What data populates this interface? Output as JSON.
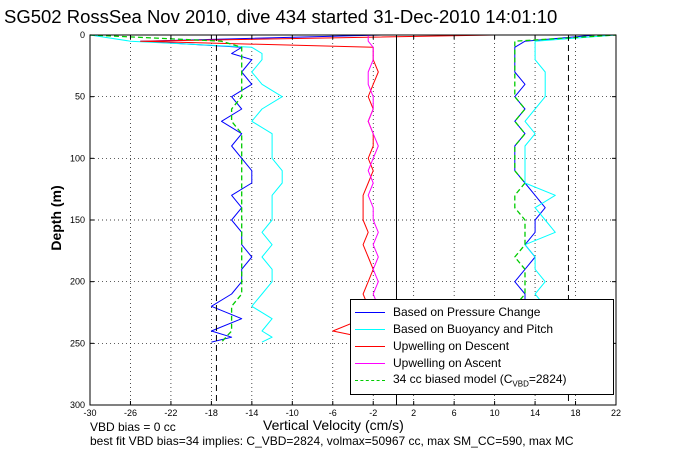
{
  "figure": {
    "title": "SG502 RossSea Nov 2010, dive 434 started 31-Dec-2010 14:01:10",
    "note_line1": "VBD bias = 0 cc",
    "note_line2": "best fit VBD bias=34 implies: C_VBD=2824, volmax=50967 cc, max SM_CC=590, max MC"
  },
  "chart_data": {
    "type": "line",
    "title": "SG502 RossSea Nov 2010, dive 434 started 31-Dec-2010 14:01:10",
    "xlabel": "Vertical Velocity (cm/s)",
    "ylabel": "Depth (m)",
    "xlim": [
      -30,
      22
    ],
    "ylim": [
      0,
      300
    ],
    "y_reversed": true,
    "grid": true,
    "legend_position": "bottom-right",
    "xticks": [
      -30,
      -26,
      -22,
      -18,
      -14,
      -10,
      -6,
      -2,
      2,
      6,
      10,
      14,
      18,
      22
    ],
    "yticks": [
      0,
      50,
      100,
      150,
      200,
      250,
      300
    ],
    "vertical_lines": [
      {
        "x": -17.5,
        "style": "dashed",
        "color": "#000000"
      },
      {
        "x": 0.3,
        "style": "solid",
        "color": "#000000"
      },
      {
        "x": 17.3,
        "style": "dashed",
        "color": "#000000"
      }
    ],
    "series": [
      {
        "name": "Based on Pressure Change",
        "color": "#0000ff",
        "style": "solid",
        "segments": [
          {
            "depth": [
              0,
              5,
              10,
              15,
              20,
              30,
              40,
              50,
              60,
              70,
              80,
              90,
              100,
              110,
              120,
              130,
              140,
              150,
              160,
              170,
              180,
              190,
              200,
              210,
              220,
              230,
              240,
              245,
              249
            ],
            "velocity": [
              -1,
              -25,
              -15,
              -16,
              -14,
              -15,
              -14,
              -16,
              -15,
              -17,
              -15,
              -16,
              -15,
              -14,
              -14,
              -16,
              -15,
              -16,
              -15,
              -15,
              -14,
              -15,
              -15,
              -16,
              -18,
              -15,
              -18,
              -16,
              -18
            ]
          },
          {
            "depth": [
              249,
              240,
              230,
              220,
              210,
              200,
              190,
              180,
              170,
              160,
              150,
              140,
              130,
              120,
              110,
              100,
              90,
              80,
              70,
              60,
              50,
              40,
              30,
              20,
              10,
              5,
              0
            ],
            "velocity": [
              12,
              15,
              14,
              13,
              13,
              12,
              13,
              14,
              13,
              14,
              14,
              15,
              14,
              13,
              12,
              12,
              12,
              13,
              12,
              13,
              12,
              13,
              12,
              12,
              12,
              13,
              20
            ]
          }
        ]
      },
      {
        "name": "Based on Buoyancy and Pitch",
        "color": "#00ffff",
        "style": "solid",
        "segments": [
          {
            "depth": [
              0,
              5,
              10,
              15,
              20,
              30,
              40,
              50,
              60,
              70,
              80,
              90,
              100,
              110,
              120,
              130,
              140,
              150,
              160,
              170,
              180,
              190,
              200,
              210,
              220,
              230,
              240,
              245,
              249
            ],
            "velocity": [
              -30,
              -26,
              -14,
              -13,
              -13,
              -14,
              -13,
              -11,
              -13,
              -14,
              -12,
              -12,
              -12,
              -11,
              -11,
              -12,
              -12,
              -12,
              -13,
              -12,
              -13,
              -12,
              -12,
              -13,
              -14,
              -12,
              -13,
              -12,
              -13
            ]
          },
          {
            "depth": [
              249,
              240,
              230,
              220,
              210,
              200,
              190,
              180,
              170,
              160,
              150,
              140,
              130,
              120,
              110,
              100,
              90,
              80,
              70,
              60,
              50,
              40,
              30,
              20,
              10,
              5,
              0
            ],
            "velocity": [
              13,
              15,
              16,
              15,
              14,
              15,
              14,
              14,
              13,
              16,
              15,
              14,
              16,
              13,
              13,
              13,
              13,
              14,
              13,
              14,
              15,
              15,
              15,
              14,
              14,
              14,
              22
            ]
          }
        ]
      },
      {
        "name": "Upwelling on Descent",
        "color": "#ff0000",
        "style": "solid",
        "segments": [
          {
            "depth": [
              0,
              5,
              10,
              20,
              30,
              40,
              50,
              60,
              70,
              80,
              90,
              100,
              110,
              120,
              130,
              140,
              150,
              160,
              170,
              180,
              190,
              200,
              210,
              220,
              230,
              240,
              245,
              249
            ],
            "velocity": [
              10,
              -25,
              -2,
              -2,
              -1.5,
              -2,
              -2.5,
              -2,
              -2.5,
              -2,
              -2,
              -2.5,
              -2,
              -2.5,
              -3,
              -3,
              -3,
              -2.5,
              -3,
              -2.5,
              -2,
              -2.5,
              -3,
              -2.5,
              -3,
              -6,
              -3,
              -3
            ]
          }
        ]
      },
      {
        "name": "Upwelling on Ascent",
        "color": "#ff00ff",
        "style": "solid",
        "segments": [
          {
            "depth": [
              249,
              240,
              230,
              220,
              210,
              200,
              190,
              180,
              170,
              160,
              150,
              140,
              130,
              120,
              110,
              100,
              90,
              80,
              70,
              60,
              50,
              40,
              30,
              20,
              10,
              5,
              0
            ],
            "velocity": [
              -2,
              -3,
              -2,
              -1.5,
              -2,
              -1.5,
              -2,
              -1.5,
              -2,
              -1.5,
              -2,
              -2,
              -2.5,
              -2,
              -2.5,
              -2,
              -1.5,
              -2,
              -2.5,
              -2,
              -2,
              -2.5,
              -2.5,
              -2,
              -2,
              -2.5,
              -2.5
            ]
          }
        ]
      },
      {
        "name": "34 cc biased model (C_VBD=2824)",
        "color": "#00cc00",
        "style": "dashed",
        "segments": [
          {
            "depth": [
              0,
              5,
              10,
              20,
              30,
              40,
              50,
              60,
              70,
              80,
              90,
              100,
              110,
              120,
              130,
              140,
              150,
              160,
              170,
              180,
              190,
              200,
              210,
              220,
              230,
              240,
              249
            ],
            "velocity": [
              -30,
              -17,
              -15,
              -15,
              -15,
              -15,
              -15,
              -16,
              -16,
              -15,
              -15,
              -15,
              -15,
              -15,
              -15,
              -15,
              -15,
              -15,
              -15,
              -15,
              -15,
              -15,
              -15,
              -16,
              -16,
              -16,
              -17
            ]
          },
          {
            "depth": [
              249,
              240,
              230,
              220,
              210,
              200,
              190,
              180,
              170,
              160,
              150,
              140,
              130,
              120,
              110,
              100,
              90,
              80,
              70,
              60,
              50,
              40,
              30,
              20,
              10,
              5,
              0
            ],
            "velocity": [
              13,
              13,
              13,
              12,
              13,
              13,
              13,
              12,
              13,
              13,
              13,
              12,
              12,
              13,
              12,
              12,
              12,
              13,
              12,
              13,
              12,
              12,
              12,
              12,
              12,
              12,
              22
            ]
          }
        ]
      }
    ]
  },
  "legend": {
    "item1": "Based on Pressure Change",
    "item2": "Based on Buoyancy and Pitch",
    "item3": "Upwelling on Descent",
    "item4": "Upwelling on Ascent",
    "item5_main": "34 cc biased model (C",
    "item5_sub": "VBD",
    "item5_tail": "=2824)"
  }
}
